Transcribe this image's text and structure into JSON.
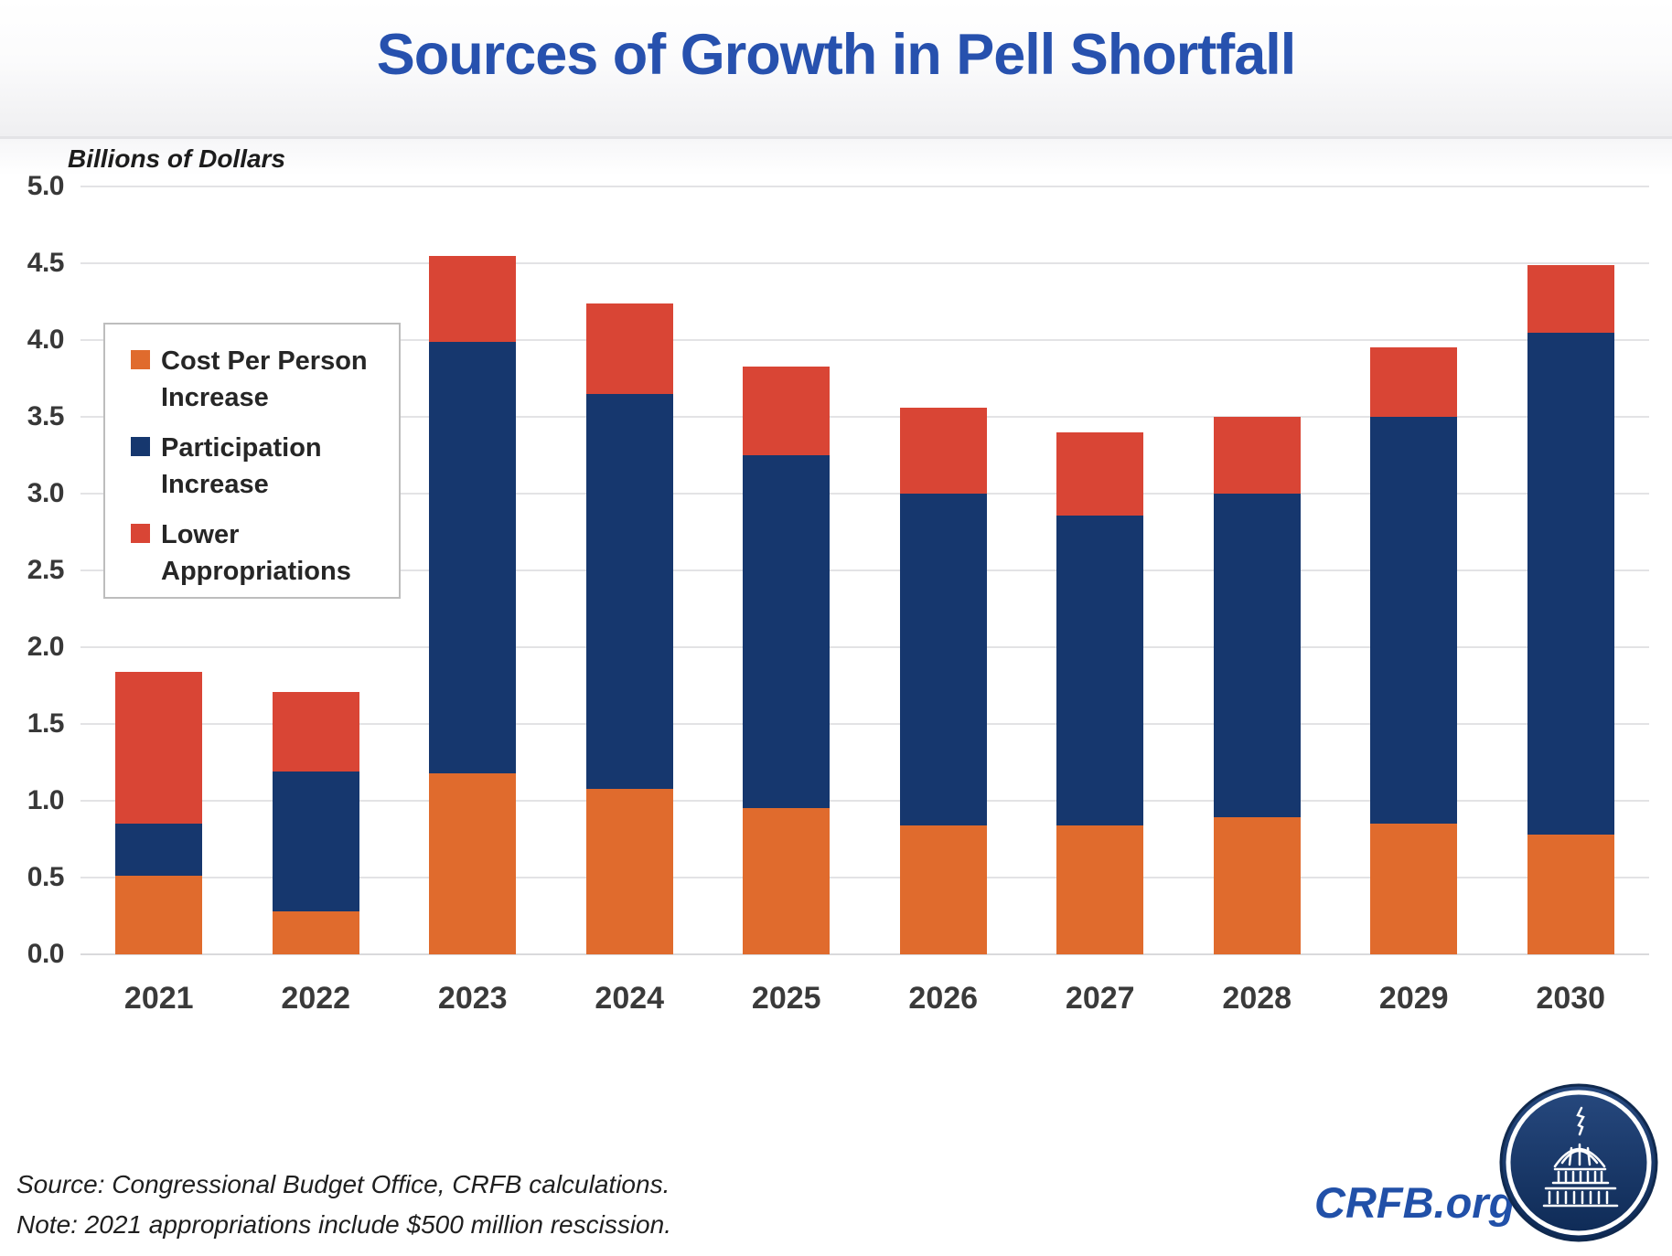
{
  "header": {
    "title": "Sources of Growth in Pell Shortfall"
  },
  "chart": {
    "axis_note": "Billions of Dollars"
  },
  "chart_data": {
    "type": "bar",
    "stacked": true,
    "title": "Sources of Growth in Pell Shortfall",
    "ylabel": "Billions of Dollars",
    "xlabel": "",
    "categories": [
      "2021",
      "2022",
      "2023",
      "2024",
      "2025",
      "2026",
      "2027",
      "2028",
      "2029",
      "2030"
    ],
    "series": [
      {
        "name": "Cost Per Person Increase",
        "color": "#E06B2D",
        "values": [
          0.51,
          0.28,
          1.18,
          1.08,
          0.95,
          0.84,
          0.84,
          0.89,
          0.85,
          0.78
        ]
      },
      {
        "name": "Participation Increase",
        "color": "#16376E",
        "values": [
          0.34,
          0.91,
          2.81,
          2.57,
          2.3,
          2.16,
          2.02,
          2.11,
          2.65,
          3.27
        ]
      },
      {
        "name": "Lower Appropriations",
        "color": "#D94535",
        "values": [
          0.99,
          0.52,
          0.56,
          0.59,
          0.58,
          0.56,
          0.54,
          0.5,
          0.45,
          0.44
        ]
      }
    ],
    "totals": [
      1.84,
      1.71,
      4.55,
      4.24,
      3.83,
      3.56,
      3.4,
      3.5,
      3.95,
      4.49
    ],
    "ylim": [
      0,
      5
    ],
    "ytick_step": 0.5,
    "grid": true,
    "gridline_color": "#e3e3e5",
    "legend_position": "upper-left"
  },
  "footer": {
    "source": "Source: Congressional Budget Office, CRFB calculations.",
    "note": "Note: 2021 appropriations include $500 million rescission.",
    "brand": "CRFB.org"
  },
  "theme": {
    "title_color": "#2751AE",
    "brand_color": "#2150A8"
  }
}
